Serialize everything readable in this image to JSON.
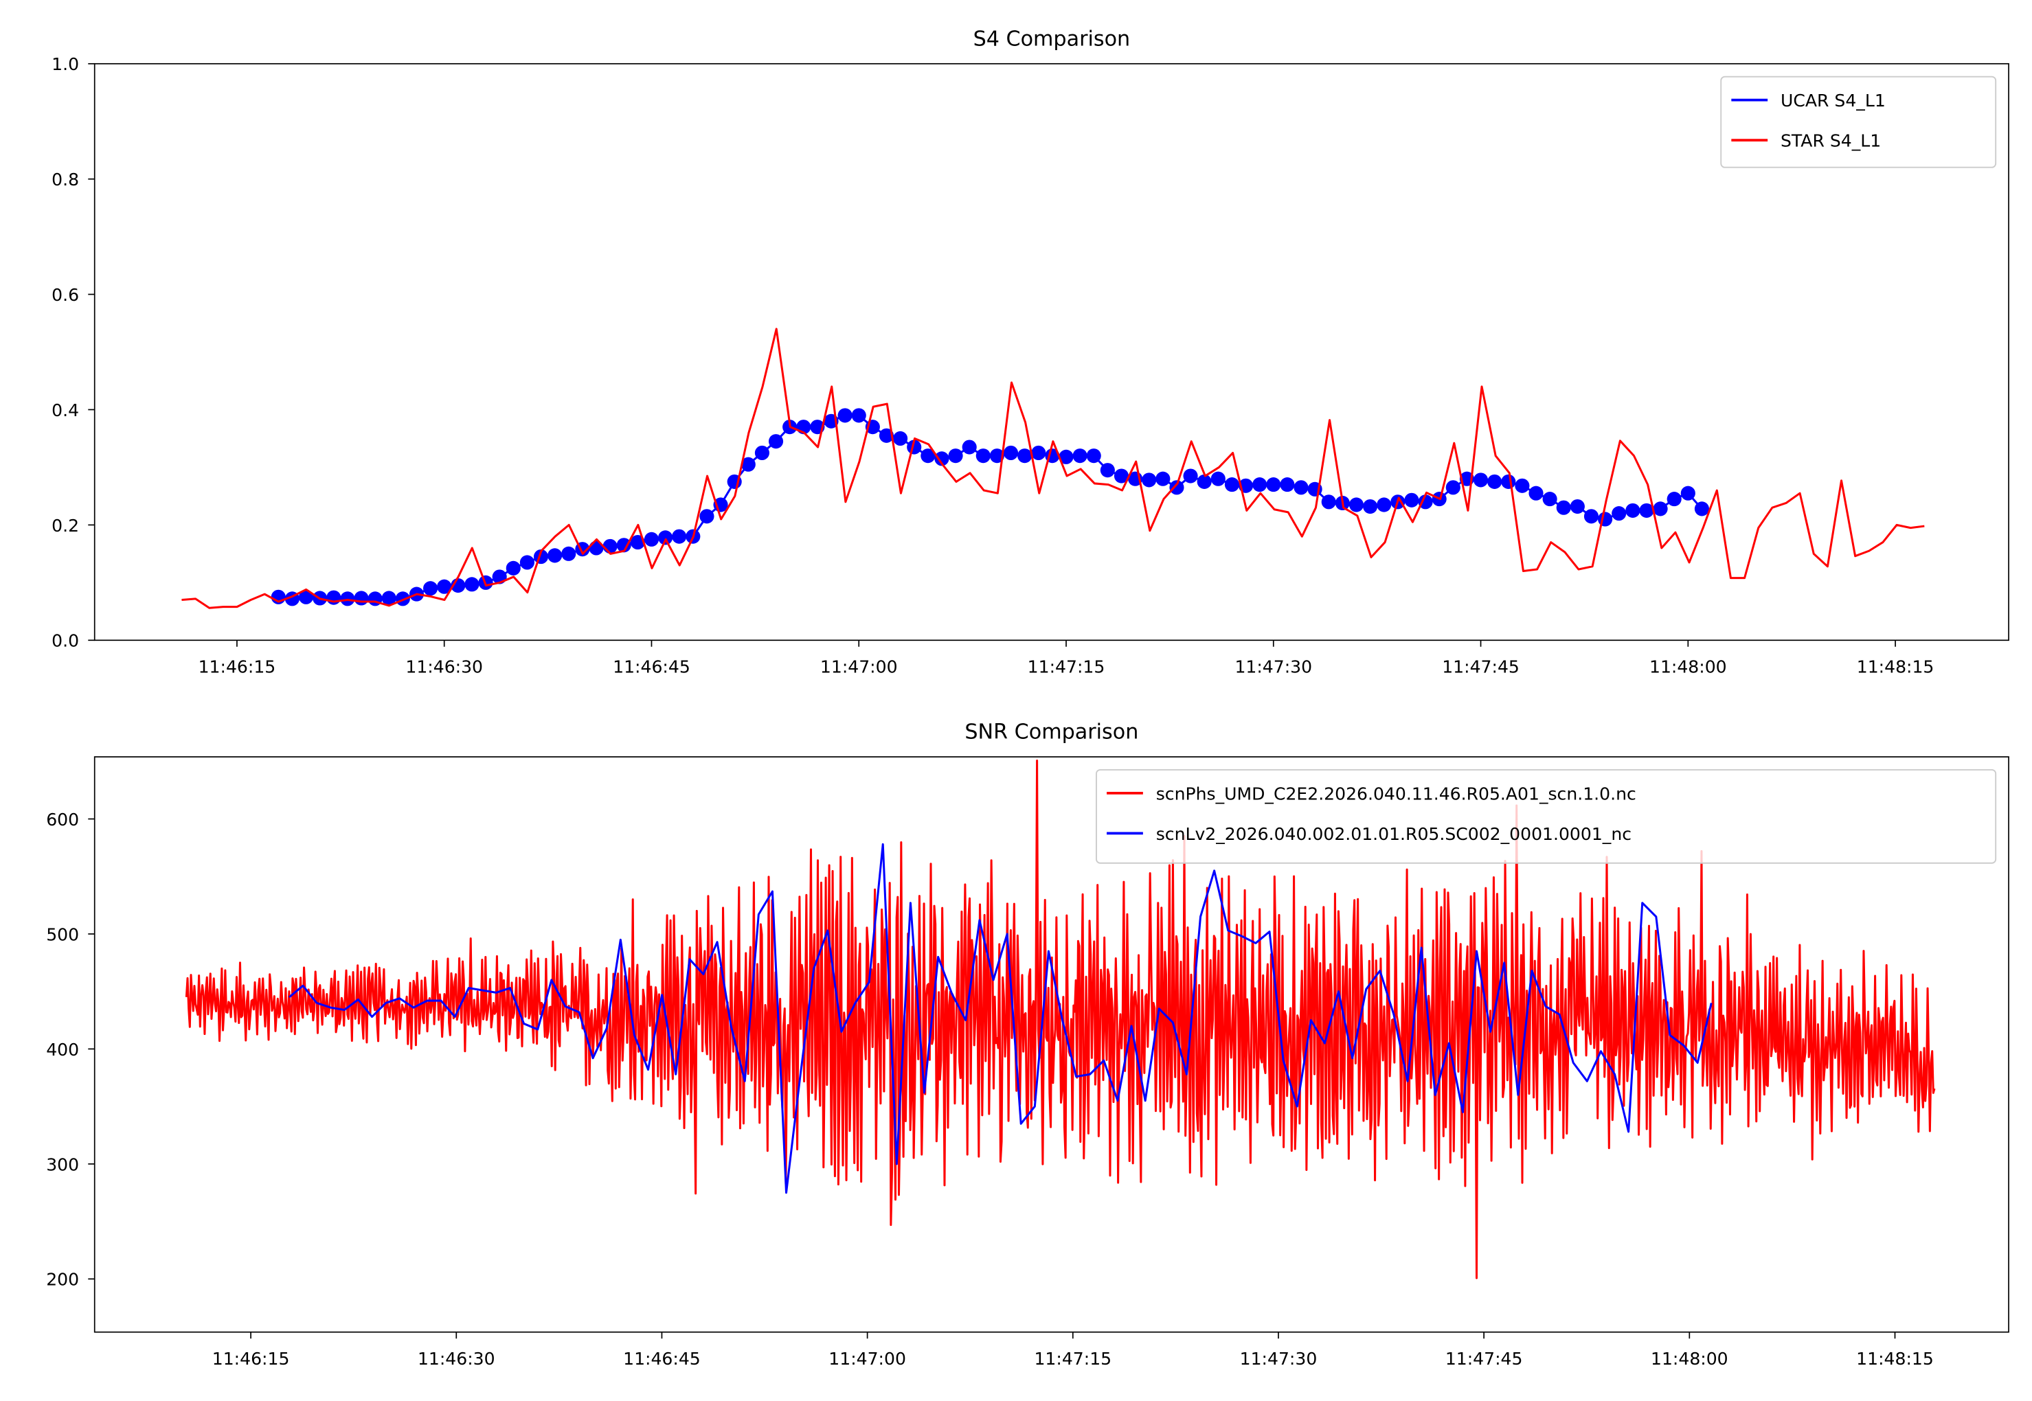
{
  "chart_data": [
    {
      "type": "line",
      "title": "S4 Comparison",
      "xlabel": "",
      "ylabel": "",
      "x_unit": "seconds after 11:46:00",
      "xlim": [
        4.7,
        143.2
      ],
      "ylim": [
        0,
        1.0
      ],
      "xticks": [
        15,
        30,
        45,
        60,
        75,
        90,
        105,
        120,
        135
      ],
      "xtick_labels": [
        "11:46:15",
        "11:46:30",
        "11:46:45",
        "11:47:00",
        "11:47:15",
        "11:47:30",
        "11:47:45",
        "11:48:00",
        "11:48:15"
      ],
      "yticks": [
        0,
        0.2,
        0.4,
        0.6,
        0.8,
        1.0
      ],
      "ytick_labels": [
        "0.0",
        "0.2",
        "0.4",
        "0.6",
        "0.8",
        "1.0"
      ],
      "legend_position": "top-right",
      "series": [
        {
          "name": "UCAR S4_L1",
          "color": "#0000ff",
          "marker": "circle",
          "t_start": 18,
          "t_step": 1,
          "values": [
            0.075,
            0.072,
            0.075,
            0.073,
            0.074,
            0.072,
            0.073,
            0.072,
            0.073,
            0.072,
            0.08,
            0.09,
            0.093,
            0.095,
            0.097,
            0.1,
            0.11,
            0.125,
            0.135,
            0.145,
            0.147,
            0.15,
            0.158,
            0.16,
            0.163,
            0.165,
            0.17,
            0.175,
            0.178,
            0.18,
            0.18,
            0.215,
            0.235,
            0.275,
            0.305,
            0.325,
            0.345,
            0.37,
            0.37,
            0.37,
            0.38,
            0.39,
            0.39,
            0.37,
            0.355,
            0.35,
            0.335,
            0.32,
            0.315,
            0.32,
            0.335,
            0.32,
            0.32,
            0.325,
            0.32,
            0.325,
            0.32,
            0.318,
            0.32,
            0.32,
            0.295,
            0.285,
            0.28,
            0.278,
            0.28,
            0.265,
            0.285,
            0.275,
            0.28,
            0.27,
            0.268,
            0.27,
            0.27,
            0.27,
            0.265,
            0.262,
            0.24,
            0.238,
            0.235,
            0.232,
            0.235,
            0.24,
            0.243,
            0.24,
            0.245,
            0.265,
            0.28,
            0.278,
            0.275,
            0.275,
            0.268,
            0.255,
            0.245,
            0.23,
            0.232,
            0.215,
            0.21,
            0.22,
            0.225,
            0.225,
            0.228,
            0.245,
            0.255,
            0.228
          ]
        },
        {
          "name": "STAR S4_L1",
          "color": "#ff0000",
          "t_start": 11,
          "t_end": 137.1,
          "values": [
            0.07,
            0.072,
            0.056,
            0.058,
            0.058,
            0.07,
            0.08,
            0.067,
            0.076,
            0.088,
            0.072,
            0.067,
            0.07,
            0.067,
            0.067,
            0.06,
            0.07,
            0.08,
            0.076,
            0.07,
            0.11,
            0.16,
            0.095,
            0.1,
            0.11,
            0.083,
            0.155,
            0.18,
            0.2,
            0.15,
            0.175,
            0.15,
            0.155,
            0.2,
            0.125,
            0.175,
            0.13,
            0.18,
            0.285,
            0.21,
            0.25,
            0.36,
            0.44,
            0.54,
            0.37,
            0.36,
            0.335,
            0.44,
            0.24,
            0.31,
            0.405,
            0.41,
            0.255,
            0.35,
            0.34,
            0.305,
            0.275,
            0.29,
            0.26,
            0.255,
            0.447,
            0.378,
            0.255,
            0.345,
            0.285,
            0.297,
            0.272,
            0.27,
            0.26,
            0.31,
            0.19,
            0.245,
            0.272,
            0.345,
            0.285,
            0.3,
            0.325,
            0.225,
            0.255,
            0.227,
            0.222,
            0.18,
            0.23,
            0.382,
            0.23,
            0.216,
            0.144,
            0.17,
            0.247,
            0.205,
            0.256,
            0.245,
            0.342,
            0.225,
            0.44,
            0.32,
            0.29,
            0.12,
            0.123,
            0.17,
            0.153,
            0.123,
            0.128,
            0.243,
            0.346,
            0.32,
            0.27,
            0.16,
            0.187,
            0.135,
            0.195,
            0.26,
            0.108,
            0.108,
            0.195,
            0.23,
            0.238,
            0.255,
            0.15,
            0.128,
            0.277,
            0.146,
            0.155,
            0.17,
            0.2,
            0.195,
            0.198
          ]
        }
      ]
    },
    {
      "type": "line",
      "title": "SNR Comparison",
      "xlabel": "",
      "ylabel": "",
      "x_unit": "seconds after 11:46:00",
      "xlim": [
        3.6,
        143.3
      ],
      "ylim": [
        153.8,
        654
      ],
      "xticks": [
        15,
        30,
        45,
        60,
        75,
        90,
        105,
        120,
        135
      ],
      "xtick_labels": [
        "11:46:15",
        "11:46:30",
        "11:46:45",
        "11:47:00",
        "11:47:15",
        "11:47:30",
        "11:47:45",
        "11:48:00",
        "11:48:15"
      ],
      "yticks": [
        200,
        300,
        400,
        500,
        600
      ],
      "ytick_labels": [
        "200",
        "300",
        "400",
        "500",
        "600"
      ],
      "legend_position": "top-right",
      "series": [
        {
          "name": "scnPhs_UMD_C2E2.2026.040.11.46.R05.A01_scn.1.0.nc",
          "color": "#ff0000",
          "t_start": 10.3,
          "t_end": 137.9,
          "samples_per_second": 12,
          "envelope_note": "high-rate oscillating signal; mean and half-amplitude by time (s)",
          "envelope": [
            [
              10,
              440,
              30
            ],
            [
              30,
              440,
              35
            ],
            [
              40,
              430,
              60
            ],
            [
              50,
              425,
              110
            ],
            [
              60,
              420,
              140
            ],
            [
              70,
              420,
              130
            ],
            [
              90,
              420,
              120
            ],
            [
              105,
              420,
              130
            ],
            [
              115,
              415,
              100
            ],
            [
              125,
              410,
              80
            ],
            [
              138,
              395,
              60
            ]
          ]
        },
        {
          "name": "scnLv2_2026.040.002.01.01.R05.SC002_0001.0001_nc",
          "color": "#0000ff",
          "t_start": 17.8,
          "t_end": 121.6,
          "values": [
            445,
            455,
            440,
            436,
            434,
            443,
            428,
            440,
            444,
            436,
            442,
            442,
            428,
            453,
            451,
            449,
            453,
            422,
            417,
            460,
            437,
            432,
            392,
            418,
            495,
            412,
            382,
            447,
            378,
            478,
            465,
            493,
            420,
            372,
            517,
            537,
            275,
            375,
            470,
            503,
            415,
            440,
            458,
            578,
            300,
            527,
            362,
            480,
            448,
            425,
            512,
            460,
            500,
            335,
            350,
            485,
            425,
            376,
            378,
            390,
            355,
            420,
            355,
            435,
            423,
            378,
            515,
            555,
            503,
            498,
            492,
            502,
            390,
            350,
            425,
            405,
            450,
            392,
            452,
            468,
            430,
            372,
            488,
            360,
            405,
            345,
            485,
            415,
            475,
            360,
            468,
            437,
            430,
            388,
            372,
            398,
            378,
            328,
            527,
            515,
            412,
            403,
            388,
            440
          ]
        }
      ]
    }
  ]
}
